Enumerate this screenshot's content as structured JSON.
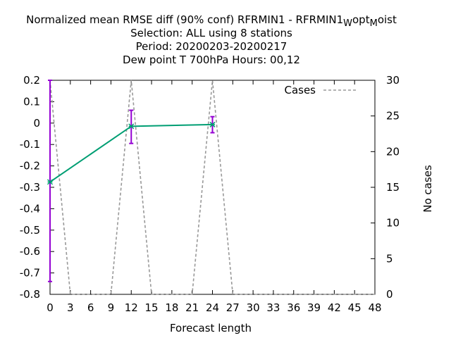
{
  "chart_data": {
    "type": "line",
    "title_lines": {
      "line1_prefix": "Normalized mean RMSE diff (90% conf) RFRMIN1 - RFRMIN1",
      "line1_sub1": "W",
      "line1_mid": "opt",
      "line1_sub2": "M",
      "line1_suffix": "oist",
      "line2": "Selection: ALL using     8 stations",
      "line3": "Period: 20200203-20200217",
      "line4": "Dew point T 700hPa   Hours:  00,12"
    },
    "xlabel": "Forecast length",
    "ylabel_right": "No cases",
    "xlim": [
      0,
      48
    ],
    "ylim_left": [
      -0.8,
      0.2
    ],
    "ylim_right": [
      0,
      30
    ],
    "x_ticks": [
      "0",
      "3",
      "6",
      "9",
      "12",
      "15",
      "18",
      "21",
      "24",
      "27",
      "30",
      "33",
      "36",
      "39",
      "42",
      "45",
      "48"
    ],
    "y_ticks_left": [
      "0.2",
      "0.1",
      "0",
      "-0.1",
      "-0.2",
      "-0.3",
      "-0.4",
      "-0.5",
      "-0.6",
      "-0.7",
      "-0.8"
    ],
    "y_ticks_right": [
      "30",
      "25",
      "20",
      "15",
      "10",
      "5",
      "0"
    ],
    "legend": {
      "label": "Cases",
      "position": "top-right"
    },
    "colors": {
      "main": "#009e73",
      "errorbar": "#9400d3",
      "cases": "#999999"
    },
    "series": [
      {
        "kind": "main",
        "points": [
          {
            "x": 0,
            "y": -0.275,
            "lo": -0.74,
            "hi": 0.2
          },
          {
            "x": 12,
            "y": -0.015,
            "lo": -0.095,
            "hi": 0.06
          },
          {
            "x": 24,
            "y": -0.007,
            "lo": -0.045,
            "hi": 0.03
          }
        ]
      },
      {
        "kind": "cases",
        "name": "Cases",
        "points": [
          {
            "x": 0,
            "y": 30
          },
          {
            "x": 3,
            "y": 0
          },
          {
            "x": 9,
            "y": 0
          },
          {
            "x": 12,
            "y": 30
          },
          {
            "x": 15,
            "y": 0
          },
          {
            "x": 21,
            "y": 0
          },
          {
            "x": 24,
            "y": 30
          },
          {
            "x": 27,
            "y": 0
          },
          {
            "x": 48,
            "y": 0
          }
        ]
      }
    ]
  }
}
